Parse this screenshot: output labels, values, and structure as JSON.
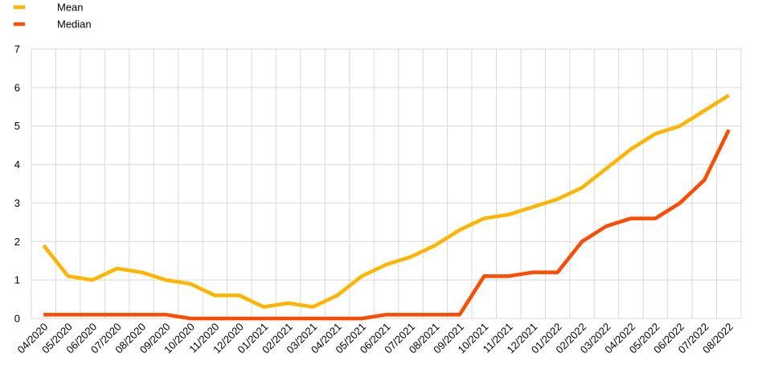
{
  "chart_data": {
    "type": "line",
    "title": "",
    "xlabel": "",
    "ylabel": "",
    "ylim": [
      0,
      7
    ],
    "yticks": [
      "0",
      "1",
      "2",
      "3",
      "4",
      "5",
      "6",
      "7"
    ],
    "grid": true,
    "legend_position": "top-left",
    "categories": [
      "04/2020",
      "05/2020",
      "06/2020",
      "07/2020",
      "08/2020",
      "09/2020",
      "10/2020",
      "11/2020",
      "12/2020",
      "01/2021",
      "02/2021",
      "03/2021",
      "04/2021",
      "05/2021",
      "06/2021",
      "07/2021",
      "08/2021",
      "09/2021",
      "10/2021",
      "11/2021",
      "12/2021",
      "01/2022",
      "02/2022",
      "03/2022",
      "04/2022",
      "05/2022",
      "06/2022",
      "07/2022",
      "08/2022"
    ],
    "series": [
      {
        "name": "Mean",
        "color": "#FFB400",
        "values": [
          1.9,
          1.1,
          1.0,
          1.3,
          1.2,
          1.0,
          0.9,
          0.6,
          0.6,
          0.3,
          0.4,
          0.3,
          0.6,
          1.1,
          1.4,
          1.6,
          1.9,
          2.3,
          2.6,
          2.7,
          2.9,
          3.1,
          3.4,
          3.9,
          4.4,
          4.8,
          5.0,
          5.4,
          5.8
        ]
      },
      {
        "name": "Median",
        "color": "#FF4B00",
        "values": [
          0.1,
          0.1,
          0.1,
          0.1,
          0.1,
          0.1,
          0.0,
          0.0,
          0.0,
          0.0,
          0.0,
          0.0,
          0.0,
          0.0,
          0.1,
          0.1,
          0.1,
          0.1,
          1.1,
          1.1,
          1.2,
          1.2,
          2.0,
          2.4,
          2.6,
          2.6,
          3.0,
          3.6,
          4.9
        ]
      }
    ]
  }
}
